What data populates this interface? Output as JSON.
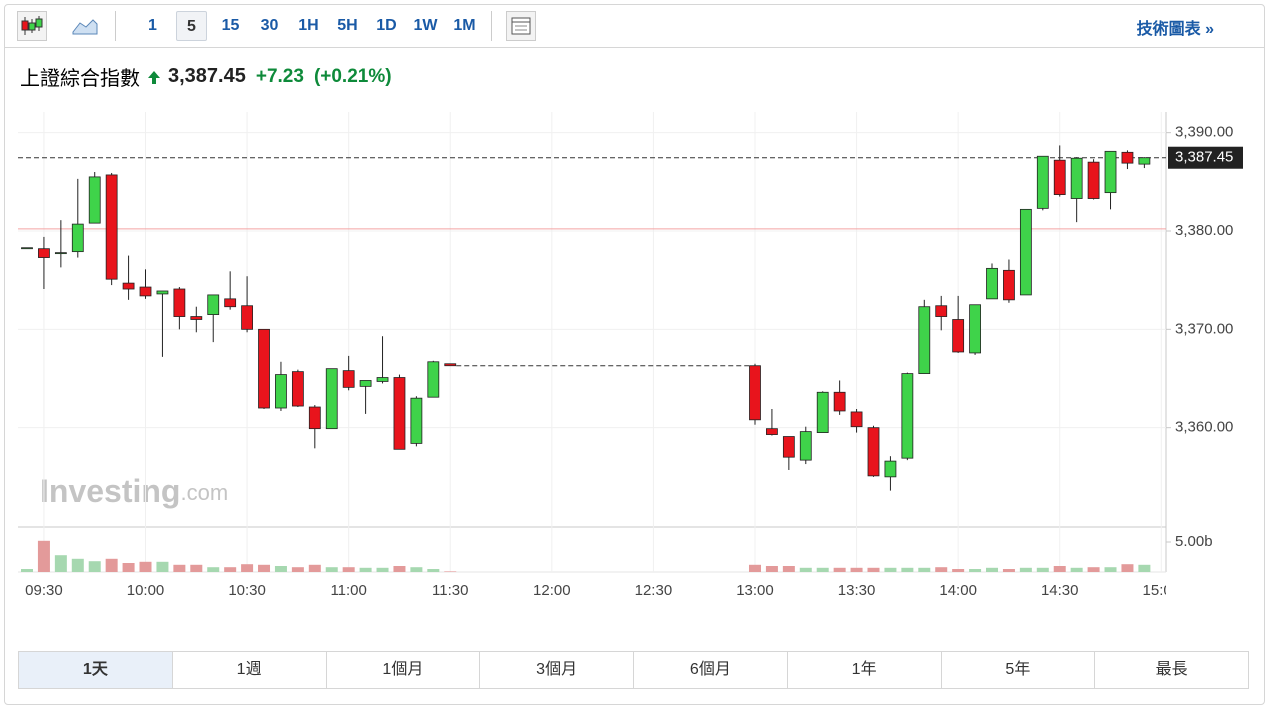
{
  "toolbar": {
    "intervals": [
      "1",
      "5",
      "15",
      "30",
      "1H",
      "5H",
      "1D",
      "1W",
      "1M"
    ],
    "selected": 1,
    "link": "技術圖表 »"
  },
  "header": {
    "name": "上證綜合指數",
    "price": "3,387.45",
    "change": "+7.23",
    "change_percent": "(+0.21%)"
  },
  "watermark": {
    "brand": "Investing",
    "suffix": ".com"
  },
  "periods": {
    "items": [
      "1天",
      "1週",
      "1個月",
      "3個月",
      "6個月",
      "1年",
      "5年",
      "最長"
    ],
    "selected": 0
  },
  "chart_data": {
    "type": "candlestick",
    "categories": [
      null,
      "09:30",
      null,
      null,
      null,
      null,
      null,
      "10:00",
      null,
      null,
      null,
      null,
      null,
      "10:30",
      null,
      null,
      null,
      null,
      null,
      "11:00",
      null,
      null,
      null,
      null,
      null,
      "11:30",
      null,
      null,
      null,
      null,
      null,
      "12:00",
      null,
      null,
      null,
      null,
      null,
      "12:30",
      null,
      null,
      null,
      null,
      null,
      "13:00",
      null,
      null,
      null,
      null,
      null,
      "13:30",
      null,
      null,
      null,
      null,
      null,
      "14:00",
      null,
      null,
      null,
      null,
      null,
      "14:30",
      null,
      null,
      null,
      null,
      null,
      "15:00"
    ],
    "open": [
      3378.3,
      3378.2,
      3377.8,
      3377.9,
      3380.8,
      3385.7,
      3374.7,
      3374.3,
      3373.6,
      3374.1,
      3371.3,
      3371.5,
      3373.1,
      3372.4,
      3370.0,
      3362.0,
      3365.7,
      3362.1,
      3359.9,
      3365.8,
      3364.2,
      3364.7,
      3365.1,
      3358.4,
      3363.1,
      3366.5,
      null,
      null,
      null,
      null,
      null,
      null,
      null,
      null,
      null,
      null,
      null,
      null,
      null,
      null,
      null,
      null,
      null,
      3366.3,
      3359.9,
      3359.1,
      3356.7,
      3359.5,
      3363.6,
      3361.6,
      3360.0,
      3355.0,
      3356.9,
      3365.5,
      3372.4,
      3371.0,
      3367.6,
      3373.1,
      3376.0,
      3373.5,
      3382.3,
      3387.2,
      3383.3,
      3387.0,
      3383.9,
      3388.0,
      3386.8,
      null
    ],
    "high": [
      3378.3,
      3379.4,
      3381.1,
      3385.3,
      3386.0,
      3385.9,
      3377.5,
      3376.1,
      3373.9,
      3374.3,
      3372.3,
      3373.5,
      3375.9,
      3375.4,
      3370.0,
      3366.7,
      3365.9,
      3362.3,
      3366.0,
      3367.3,
      3364.8,
      3369.3,
      3365.4,
      3363.2,
      3366.8,
      3366.5,
      null,
      null,
      null,
      null,
      null,
      null,
      null,
      null,
      null,
      null,
      null,
      null,
      null,
      null,
      null,
      null,
      null,
      3366.5,
      3361.9,
      3359.1,
      3360.1,
      3363.7,
      3364.8,
      3361.9,
      3360.2,
      3357.1,
      3365.6,
      3373.0,
      3373.4,
      3373.4,
      3372.5,
      3376.7,
      3377.1,
      3382.2,
      3387.6,
      3388.7,
      3387.5,
      3387.3,
      3388.1,
      3388.2,
      3387.5,
      null
    ],
    "low": [
      3378.3,
      3374.1,
      3376.3,
      3377.3,
      3380.8,
      3374.5,
      3373.0,
      3373.1,
      3367.2,
      3370.0,
      3369.7,
      3368.7,
      3372.0,
      3369.7,
      3361.9,
      3361.7,
      3362.1,
      3357.9,
      3359.9,
      3363.8,
      3361.4,
      3364.5,
      3357.8,
      3358.1,
      3363.1,
      3366.3,
      null,
      null,
      null,
      null,
      null,
      null,
      null,
      null,
      null,
      null,
      null,
      null,
      null,
      null,
      null,
      null,
      null,
      3360.3,
      3359.2,
      3355.7,
      3356.3,
      3359.5,
      3361.3,
      3359.5,
      3355.0,
      3353.6,
      3356.7,
      3365.5,
      3369.9,
      3367.6,
      3367.4,
      3373.1,
      3372.7,
      3373.5,
      3382.1,
      3383.5,
      3380.9,
      3383.2,
      3382.2,
      3386.3,
      3386.4,
      null
    ],
    "close": [
      3378.3,
      3377.3,
      3377.8,
      3380.7,
      3385.5,
      3375.1,
      3374.1,
      3373.4,
      3373.9,
      3371.3,
      3371.0,
      3373.5,
      3372.3,
      3370.0,
      3362.0,
      3365.4,
      3362.2,
      3359.9,
      3366.0,
      3364.1,
      3364.8,
      3365.1,
      3357.8,
      3363.0,
      3366.7,
      3366.3,
      null,
      null,
      null,
      null,
      null,
      null,
      null,
      null,
      null,
      null,
      null,
      null,
      null,
      null,
      null,
      null,
      null,
      3360.8,
      3359.3,
      3357.0,
      3359.6,
      3363.6,
      3361.7,
      3360.1,
      3355.1,
      3356.6,
      3365.5,
      3372.3,
      3371.3,
      3367.7,
      3372.5,
      3376.2,
      3373.0,
      3382.2,
      3387.6,
      3383.7,
      3387.4,
      3383.3,
      3388.1,
      3386.9,
      3387.45,
      null
    ],
    "up_color": "#3fd34a",
    "down_color": "#e8141c",
    "ylim": [
      3349.9,
      3392.1
    ],
    "yticks": [
      {
        "value": 3360,
        "label": "3,360.00"
      },
      {
        "value": 3370,
        "label": "3,370.00"
      },
      {
        "value": 3380,
        "label": "3,380.00"
      },
      {
        "value": 3390,
        "label": "3,390.00"
      }
    ],
    "grid": true,
    "last_price": {
      "value": 3387.45,
      "label": "3,387.45"
    },
    "previous_close": 3380.22,
    "volume": {
      "values": [
        500000000.0,
        5200000000.0,
        2800000000.0,
        2200000000.0,
        1800000000.0,
        2200000000.0,
        1500000000.0,
        1700000000.0,
        1700000000.0,
        1200000000.0,
        1200000000.0,
        800000000.0,
        800000000.0,
        1300000000.0,
        1200000000.0,
        1000000000.0,
        800000000.0,
        1200000000.0,
        800000000.0,
        800000000.0,
        700000000.0,
        700000000.0,
        1000000000.0,
        800000000.0,
        500000000.0,
        100000000.0,
        null,
        null,
        null,
        null,
        null,
        null,
        null,
        null,
        null,
        null,
        null,
        null,
        null,
        null,
        null,
        null,
        null,
        1200000000.0,
        1000000000.0,
        1000000000.0,
        700000000.0,
        700000000.0,
        700000000.0,
        700000000.0,
        700000000.0,
        700000000.0,
        700000000.0,
        700000000.0,
        800000000.0,
        500000000.0,
        500000000.0,
        700000000.0,
        500000000.0,
        700000000.0,
        700000000.0,
        1000000000.0,
        700000000.0,
        800000000.0,
        800000000.0,
        1300000000.0,
        1200000000.0,
        null
      ],
      "up_color": "#a6d8b0",
      "down_color": "#e39a9a",
      "ylim": [
        0,
        7500000000.0
      ],
      "yticks": [
        {
          "value": 5000000000.0,
          "label": "5.00b"
        }
      ]
    }
  }
}
